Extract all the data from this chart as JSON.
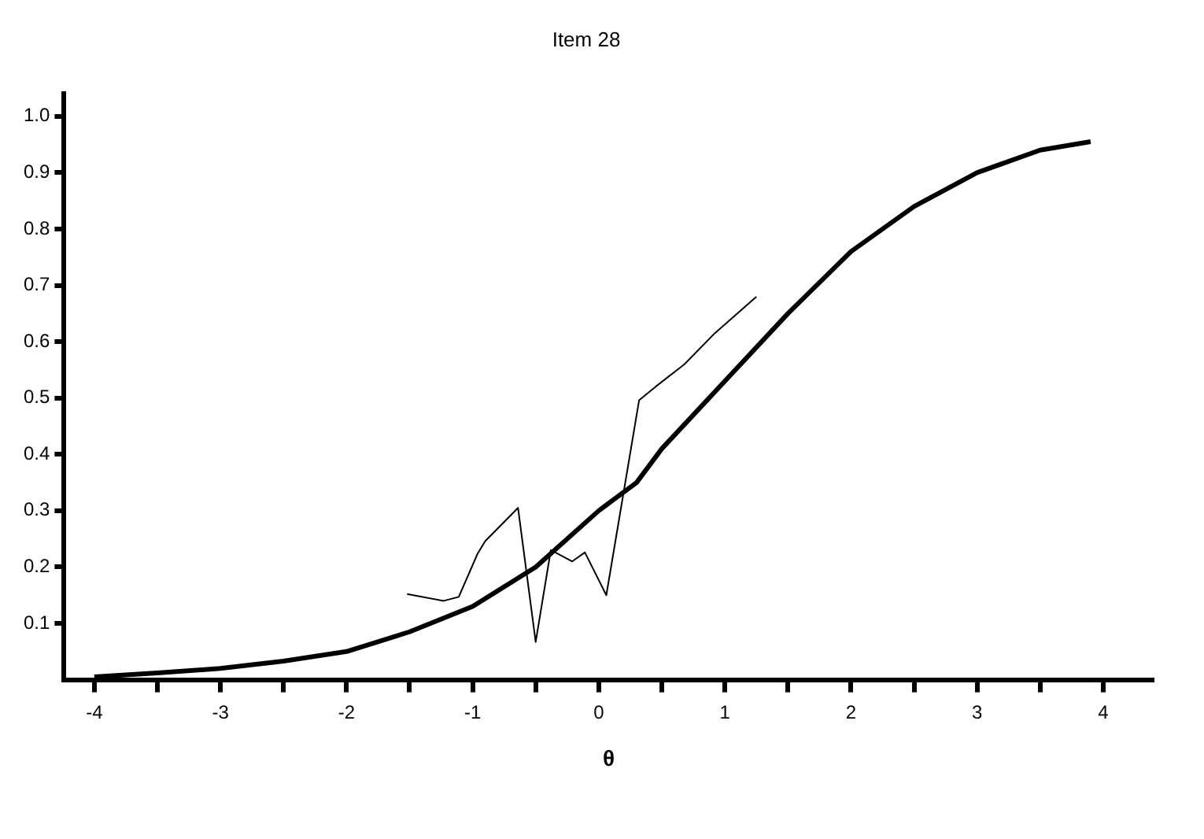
{
  "chart_data": {
    "type": "line",
    "title": "Item 28",
    "xlabel": "θ",
    "xlim": [
      -4.24,
      4.4
    ],
    "xticks": [
      -4,
      {
        "value": -3.5,
        "label": null
      },
      -3,
      {
        "value": -2.5,
        "label": null
      },
      -2,
      {
        "value": -1.5,
        "label": null
      },
      -1,
      {
        "value": -0.5,
        "label": null
      },
      0,
      {
        "value": 0.5,
        "label": null
      },
      1,
      {
        "value": 1.5,
        "label": null
      },
      2,
      {
        "value": 2.5,
        "label": null
      },
      3,
      {
        "value": 3.5,
        "label": null
      },
      4
    ],
    "ylim": [
      0,
      1.04
    ],
    "yticks": [
      0.1,
      0.2,
      0.3,
      0.4,
      0.5,
      0.6,
      0.7,
      0.8,
      0.9,
      {
        "value": 1,
        "label": "1.0"
      }
    ],
    "grid": false,
    "marker": "none",
    "line_style": "solid",
    "series": [
      {
        "color": "#000000",
        "x": [
          -4,
          -3.5,
          -3,
          -2.5,
          -2,
          -1.5,
          -1,
          -0.5,
          0,
          0.3,
          0.5,
          1,
          1.5,
          2,
          2.5,
          3,
          3.5,
          3.9
        ],
        "values": [
          0.005,
          0.012,
          0.02,
          0.033,
          0.05,
          0.085,
          0.13,
          0.2,
          0.3,
          0.35,
          0.41,
          0.53,
          0.65,
          0.76,
          0.84,
          0.9,
          0.94,
          0.955
        ]
      },
      {
        "color": "#000000",
        "x": [
          -1.52,
          -1.23,
          -1.11,
          -0.96,
          -0.9,
          -0.64,
          -0.5,
          -0.38,
          -0.21,
          -0.11,
          0.06,
          0.32,
          0.45,
          0.68,
          0.92,
          1.25
        ],
        "values": [
          0.152,
          0.14,
          0.147,
          0.224,
          0.246,
          0.305,
          0.067,
          0.23,
          0.21,
          0.226,
          0.15,
          0.496,
          0.52,
          0.56,
          0.615,
          0.68
        ]
      }
    ]
  }
}
